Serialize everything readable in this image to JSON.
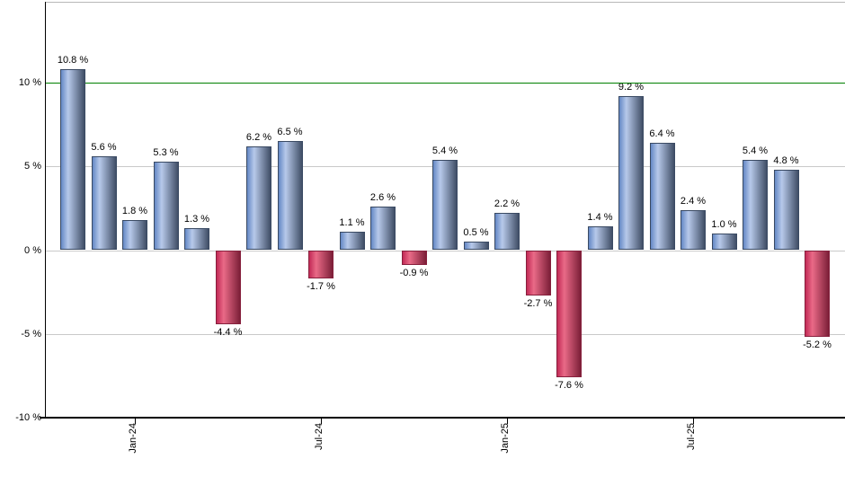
{
  "chart_data": {
    "type": "bar",
    "title": "",
    "unit": "%",
    "values": [
      10.8,
      5.6,
      1.8,
      5.3,
      1.3,
      -4.4,
      6.2,
      6.5,
      -1.7,
      1.1,
      2.6,
      -0.9,
      5.4,
      0.5,
      2.2,
      -2.7,
      -7.6,
      1.4,
      9.2,
      6.4,
      2.4,
      1.0,
      5.4,
      4.8,
      -5.2
    ],
    "labels": [
      "10.8 %",
      "5.6 %",
      "1.8 %",
      "5.3 %",
      "1.3 %",
      "-4.4 %",
      "6.2 %",
      "6.5 %",
      "-1.7 %",
      "1.1 %",
      "2.6 %",
      "-0.9 %",
      "5.4 %",
      "0.5 %",
      "2.2 %",
      "-2.7 %",
      "-7.6 %",
      "1.4 %",
      "9.2 %",
      "6.4 %",
      "2.4 %",
      "1.0 %",
      "5.4 %",
      "4.8 %",
      "-5.2 %"
    ],
    "y_ticks": [
      {
        "value": 10,
        "label": "10 %"
      },
      {
        "value": 5,
        "label": "5 %"
      },
      {
        "value": 0,
        "label": "0 %"
      },
      {
        "value": -5,
        "label": "-5 %"
      },
      {
        "value": -10,
        "label": "-10 %"
      }
    ],
    "x_ticks": [
      {
        "bar_index": 2,
        "label": "Jan-24"
      },
      {
        "bar_index": 8,
        "label": "Jul-24"
      },
      {
        "bar_index": 14,
        "label": "Jan-25"
      },
      {
        "bar_index": 20,
        "label": "Jul-25"
      }
    ],
    "threshold_line": {
      "value": 10
    },
    "ylim": [
      -10,
      14.8
    ],
    "grid": true,
    "legend": false
  },
  "colors": {
    "background": "#ffffff",
    "threshold_line": "#008000",
    "grid_line": "#c9c9c9",
    "top_border": "#b8b8b8",
    "axis_line": "#000000",
    "label_text": "#000000",
    "positive_bar": {
      "edge_left": "#6488c5",
      "highlight": "#b7c9ea",
      "edge_right": "#404e66",
      "border": "#3a4a63"
    },
    "negative_bar": {
      "edge_left": "#c22a56",
      "highlight": "#e96a87",
      "edge_right": "#7c1f38",
      "border": "#87203d"
    }
  }
}
